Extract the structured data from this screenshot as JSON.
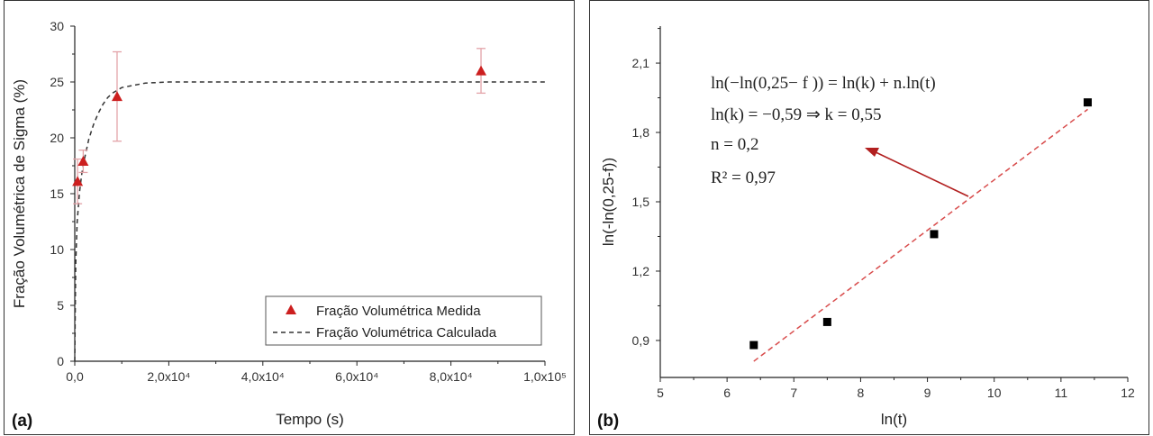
{
  "colors": {
    "marker": "#cc1f1f",
    "errorbar": "#e3a3a8",
    "fit_a": "#333333",
    "fit_b": "#d84b4b",
    "arrow": "#b21f1f",
    "axis": "#222222"
  },
  "chart_data": [
    {
      "type": "scatter",
      "panel_label": "(a)",
      "xlabel": "Tempo (s)",
      "ylabel": "Fração Volumétrica de Sigma (%)",
      "xlim": [
        0,
        100000
      ],
      "ylim": [
        0,
        30
      ],
      "xticks": [
        "0,0",
        "2,0x10⁴",
        "4,0x10⁴",
        "6,0x10⁴",
        "8,0x10⁴",
        "1,0x10⁵"
      ],
      "yticks": [
        "0",
        "5",
        "10",
        "15",
        "20",
        "25",
        "30"
      ],
      "legend_position": "bottom-right",
      "series": [
        {
          "name": "Fração Volumétrica Medida",
          "marker": "triangle",
          "x": [
            600,
            1800,
            9000,
            86400
          ],
          "y": [
            16.1,
            17.9,
            23.7,
            26.0
          ],
          "err_low": [
            2.0,
            1.0,
            4.0,
            2.0
          ],
          "err_high": [
            2.0,
            1.0,
            4.0,
            2.0
          ]
        },
        {
          "name": "Fração Volumétrica Calculada",
          "line": "dashed",
          "x": [
            0,
            200,
            500,
            1000,
            1500,
            2000,
            3000,
            4000,
            5000,
            6000,
            7000,
            8000,
            10000,
            15000,
            20000,
            40000,
            60000,
            80000,
            100000
          ],
          "y": [
            0,
            8.6,
            12.4,
            15.1,
            16.8,
            18.0,
            19.9,
            21.2,
            22.2,
            23.0,
            23.6,
            24.0,
            24.5,
            24.9,
            25.0,
            25.0,
            25.0,
            25.0,
            25.0
          ]
        }
      ]
    },
    {
      "type": "scatter",
      "panel_label": "(b)",
      "xlabel": "ln(t)",
      "ylabel": "ln(-ln(0,25-f))",
      "xlim": [
        5,
        12
      ],
      "ylim": [
        0.74,
        2.26
      ],
      "xticks": [
        "5",
        "6",
        "7",
        "8",
        "9",
        "10",
        "11",
        "12"
      ],
      "yticks": [
        "0,9",
        "1,2",
        "1,5",
        "1,8",
        "2,1"
      ],
      "ytick_values": [
        0.9,
        1.2,
        1.5,
        1.8,
        2.1
      ],
      "points": {
        "x": [
          6.4,
          7.5,
          9.1,
          11.4
        ],
        "y": [
          0.88,
          0.98,
          1.36,
          1.93
        ]
      },
      "fit": {
        "x": [
          6.4,
          11.4
        ],
        "y": [
          0.81,
          1.9
        ],
        "line": "dashed"
      },
      "annotation": {
        "lines": [
          "ln(−ln(0,25− f )) = ln(k) + n.ln(t)",
          "ln(k) = −0,59 ⇒ k = 0,55",
          "n = 0,2",
          "R² = 0,97"
        ]
      }
    }
  ]
}
